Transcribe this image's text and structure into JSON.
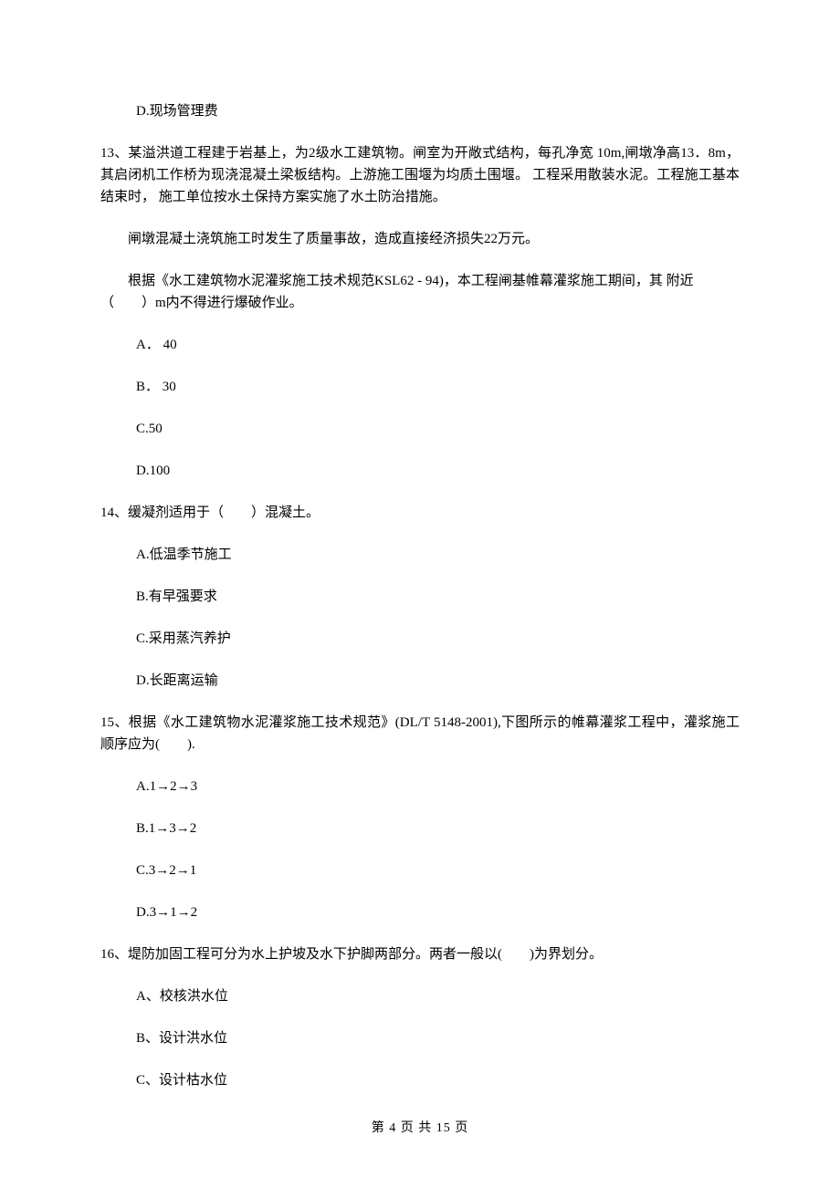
{
  "q12": {
    "optD": "D.现场管理费"
  },
  "q13": {
    "body": "13、某溢洪道工程建于岩基上，为2级水工建筑物。闸室为开敞式结构，每孔净宽 10m,闸墩净高13．8m，其启闭机工作桥为现浇混凝土梁板结构。上游施工围堰为均质土围堰。 工程采用散装水泥。工程施工基本结束时， 施工单位按水土保持方案实施了水土防治措施。",
    "p2": "闸墩混凝土浇筑施工时发生了质量事故，造成直接经济损失22万元。",
    "p3": "根据《水工建筑物水泥灌浆施工技术规范KSL62 - 94)，本工程闸基帷幕灌浆施工期间，其 附近（　　）m内不得进行爆破作业。",
    "optA": "A．  40",
    "optB": "B．  30",
    "optC": "C.50",
    "optD": "D.100"
  },
  "q14": {
    "body": "14、缓凝剂适用于（　　）混凝土。",
    "optA": "A.低温季节施工",
    "optB": "B.有早强要求",
    "optC": "C.采用蒸汽养护",
    "optD": "D.长距离运输"
  },
  "q15": {
    "body": "15、根据《水工建筑物水泥灌浆施工技术规范》(DL/T 5148-2001),下图所示的帷幕灌浆工程中，灌浆施工顺序应为(　　).",
    "optA": "A.1→2→3",
    "optB": "B.1→3→2",
    "optC": "C.3→2→1",
    "optD": "D.3→1→2"
  },
  "q16": {
    "body": "16、堤防加固工程可分为水上护坡及水下护脚两部分。两者一般以(　　)为界划分。",
    "optA": "A、校核洪水位",
    "optB": "B、设计洪水位",
    "optC": "C、设计枯水位"
  },
  "footer": "第 4 页 共 15 页"
}
